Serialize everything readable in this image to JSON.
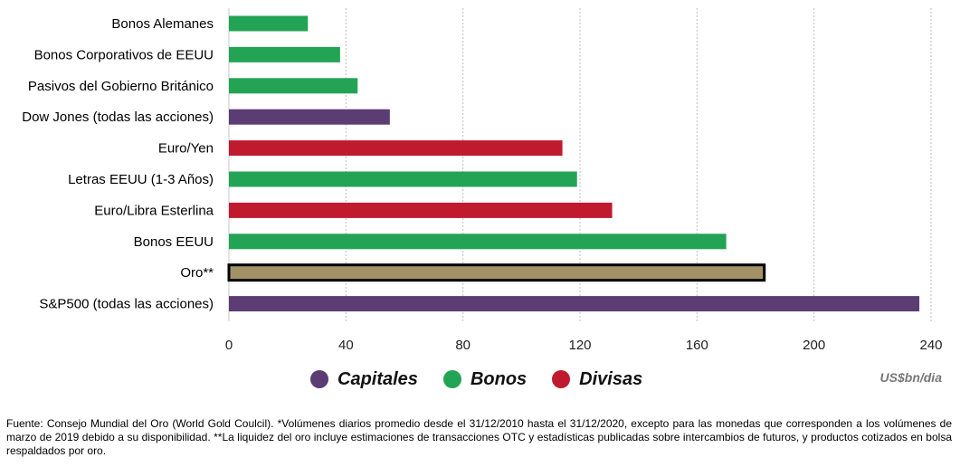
{
  "chart_data": {
    "type": "bar",
    "orientation": "horizontal",
    "categories": [
      "Bonos Alemanes",
      "Bonos Corporativos de EEUU",
      "Pasivos del Gobierno Británico",
      "Dow Jones (todas las acciones)",
      "Euro/Yen",
      "Letras EEUU (1-3 Años)",
      "Euro/Libra Esterlina",
      "Bonos EEUU",
      "Oro**",
      "S&P500 (todas las acciones)"
    ],
    "values": [
      27,
      38,
      44,
      55,
      114,
      119,
      131,
      170,
      183,
      236
    ],
    "groups": [
      "Bonos",
      "Bonos",
      "Bonos",
      "Capitales",
      "Divisas",
      "Bonos",
      "Divisas",
      "Bonos",
      "Oro",
      "Capitales"
    ],
    "xlim": [
      0,
      240
    ],
    "xticks": [
      0,
      40,
      80,
      120,
      160,
      200,
      240
    ],
    "grid": "vertical dotted",
    "legend_placement": "bottom",
    "unit_label": "US$bn/dia"
  },
  "legend": [
    {
      "label": "Capitales",
      "color": "#5b3d73"
    },
    {
      "label": "Bonos",
      "color": "#23a455"
    },
    {
      "label": "Divisas",
      "color": "#c01a2f"
    }
  ],
  "colors": {
    "Capitales": "#5b3d73",
    "Bonos": "#23a455",
    "Divisas": "#c01a2f",
    "Oro": "#a39267",
    "oro_border": "#000000",
    "grid": "#bdbdbd"
  },
  "source_note": "Fuente: Consejo Mundial del Oro (World Gold Coulcil). *Volúmenes diarios promedio desde el 31/12/2010 hasta el 31/12/2020, excepto para las monedas que corresponden a los volúmenes de marzo de 2019 debido a su disponibilidad. **La liquidez del oro incluye estimaciones de transacciones OTC y estadísticas publicadas sobre intercambios de futuros, y productos cotizados en bolsa respaldados por oro."
}
